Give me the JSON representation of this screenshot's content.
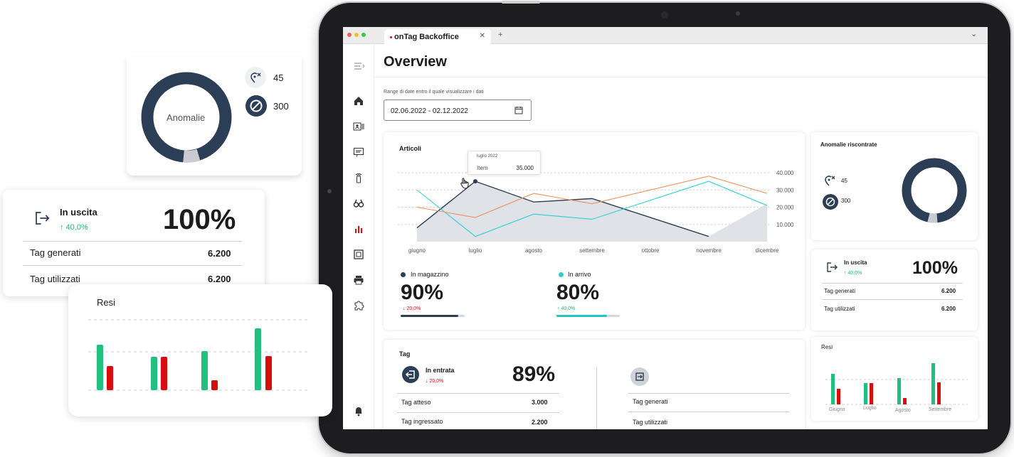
{
  "colors": {
    "navy": "#2c3e55",
    "green": "#22c07f",
    "red": "#d80d0d",
    "cyan": "#2dcfd6",
    "orange": "#ef9160",
    "area": "#dcdfe3"
  },
  "browser": {
    "tab_title": "onTag Backoffice",
    "new_tab": "+",
    "chevron": "⌄"
  },
  "sidebar": {
    "icons": [
      "menu-icon",
      "home-icon",
      "contact-card-icon",
      "message-icon",
      "rfid-tag-icon",
      "binoculars-icon",
      "bar-chart-icon",
      "frame-icon",
      "printer-icon",
      "puzzle-icon",
      "bell-icon"
    ]
  },
  "page": {
    "title": "Overview",
    "date_label": "Range di date entro il quale visualizzare i dati",
    "date_value": "02.06.2022 - 02.12.2022"
  },
  "articoli": {
    "title": "Articoli",
    "tooltip": {
      "date": "luglio 2022",
      "label": "Item",
      "value": "35.000"
    },
    "stats": [
      {
        "name": "In magazzino",
        "value": "90%",
        "change": "↓ 20,0%",
        "direction": "down",
        "progress": 0.9
      },
      {
        "name": "In arrivo",
        "value": "80%",
        "change": "↑ 40,0%",
        "direction": "up",
        "progress": 0.8
      }
    ]
  },
  "chart_data": {
    "type": "line",
    "title": "Articoli",
    "categories": [
      "giugno",
      "luglio",
      "agosto",
      "settembre",
      "ottobre",
      "novembre",
      "dicembre"
    ],
    "ytick_labels": [
      "10.000",
      "20.000",
      "30.000",
      "40.000"
    ],
    "ylim": [
      0,
      40000
    ],
    "grid": true,
    "series": [
      {
        "name": "In magazzino",
        "values": [
          8000,
          35000,
          23000,
          25000,
          null,
          3000,
          null
        ]
      },
      {
        "name": "In arrivo",
        "values": [
          30000,
          3000,
          16000,
          13000,
          null,
          35000,
          21000
        ]
      },
      {
        "name": "",
        "values": [
          20000,
          14000,
          28000,
          22000,
          null,
          38000,
          28000
        ]
      }
    ]
  },
  "anomalie_card": {
    "title": "Anomalie riscontrate",
    "items": [
      {
        "icon": "location-x-icon",
        "value": "45"
      },
      {
        "icon": "blocked-icon",
        "value": "300"
      }
    ]
  },
  "uscita_card": {
    "title": "In uscita",
    "change": "↑ 40,0%",
    "value": "100%",
    "rows": [
      {
        "label": "Tag generati",
        "value": "6.200"
      },
      {
        "label": "Tag utilizzati",
        "value": "6.200"
      }
    ]
  },
  "resi_card": {
    "title": "Resi",
    "months": [
      "Giugno",
      "Luglio",
      "Agosto",
      "Settembre"
    ]
  },
  "tag": {
    "title": "Tag",
    "entrata": {
      "title": "In entrata",
      "change": "↓ 20,0%",
      "value": "89%",
      "rows": [
        {
          "label": "Tag atteso",
          "value": "3.000"
        },
        {
          "label": "Tag ingressato",
          "value": "2.200"
        }
      ]
    },
    "right_rows": [
      {
        "label": "Tag generati"
      },
      {
        "label": "Tag utilizzati"
      }
    ]
  },
  "floating": {
    "anomalie": {
      "center": "Anomalie",
      "items": [
        {
          "icon": "location-x-icon",
          "value": "45"
        },
        {
          "icon": "blocked-icon",
          "value": "300"
        }
      ]
    },
    "uscita": {
      "title": "In uscita",
      "change": "↑ 40,0%",
      "value": "100%",
      "rows": [
        {
          "label": "Tag generati",
          "value": "6.200"
        },
        {
          "label": "Tag utilizzati",
          "value": "6.200"
        }
      ]
    },
    "resi": {
      "title": "Resi"
    }
  }
}
